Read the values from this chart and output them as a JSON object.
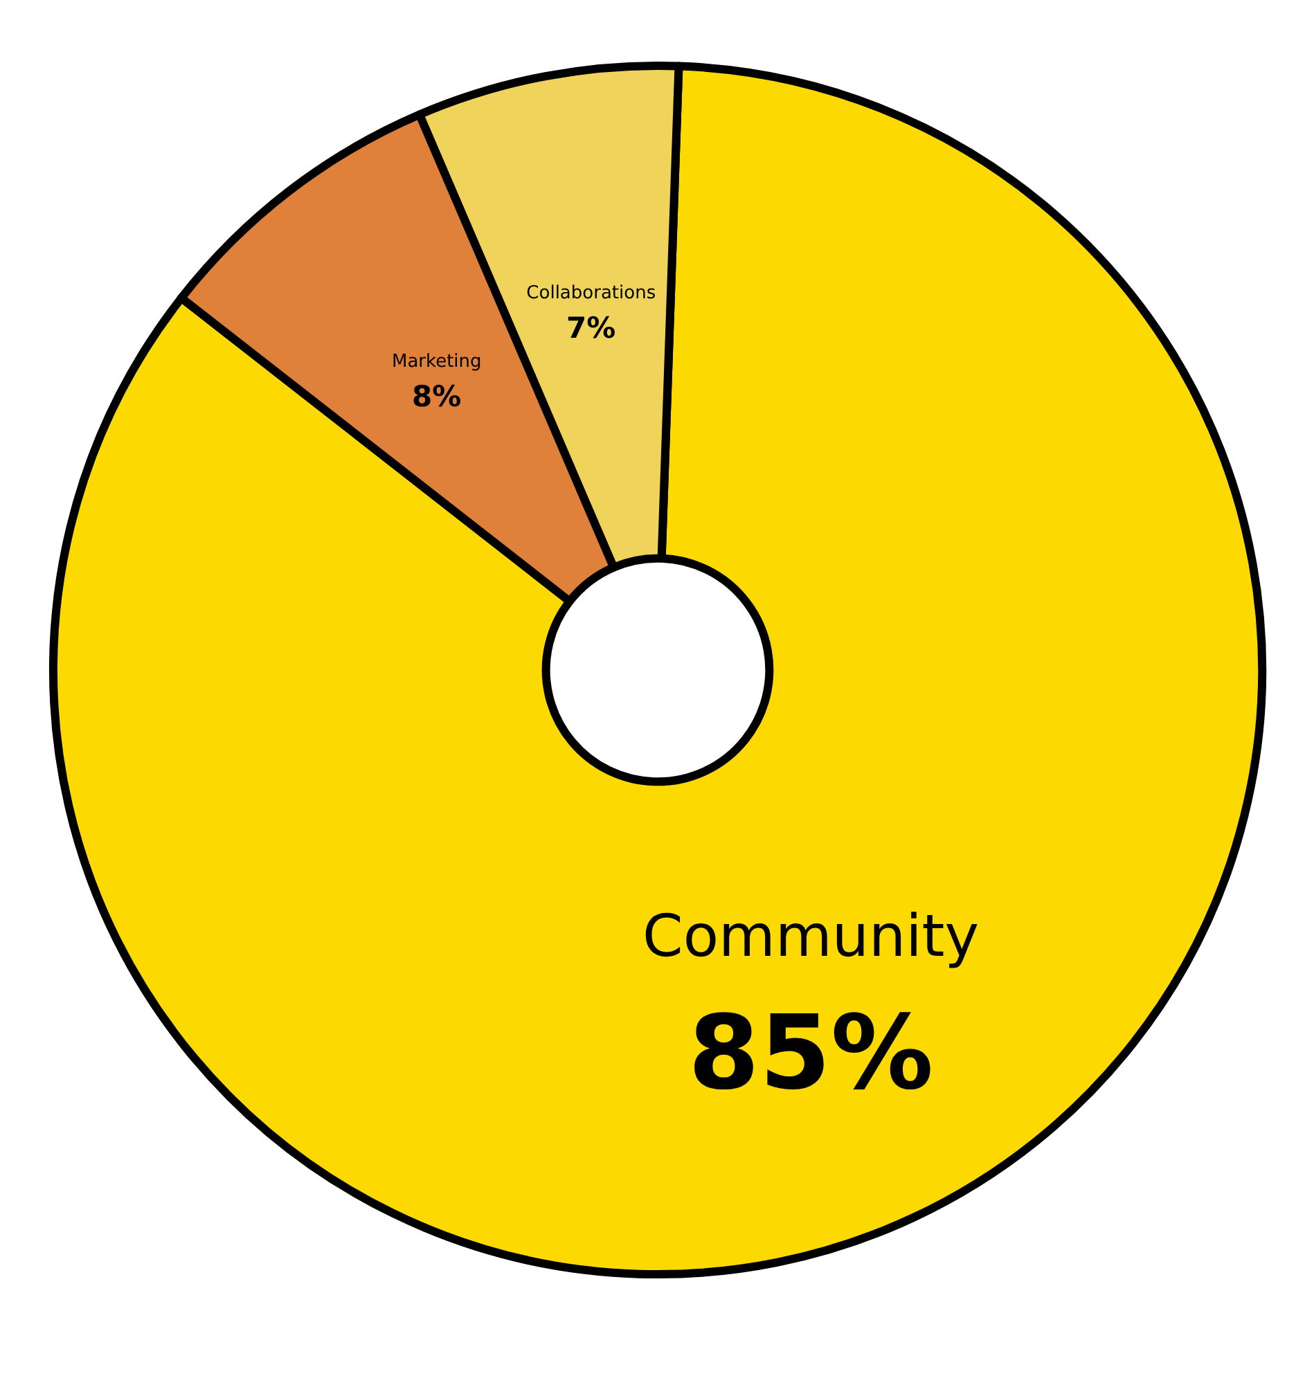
{
  "chart_data": {
    "type": "donut",
    "categories": [
      "Community",
      "Marketing",
      "Collaborations"
    ],
    "values": [
      85,
      8,
      7
    ],
    "value_labels": [
      "85%",
      "8%",
      "7%"
    ],
    "colors": [
      "#fcd900",
      "#df813b",
      "#efd35b"
    ],
    "legend": false
  }
}
